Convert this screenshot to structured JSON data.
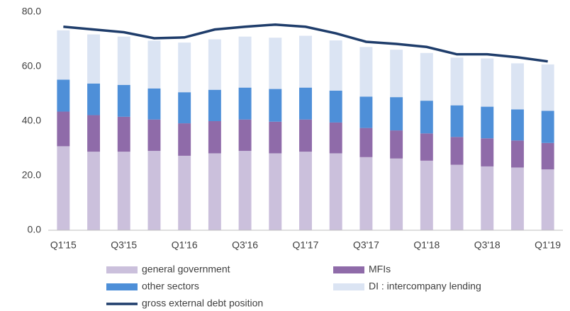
{
  "chart_data": {
    "type": "bar",
    "stacked": true,
    "grid": false,
    "categories": [
      "Q1'15",
      null,
      "Q3'15",
      null,
      "Q1'16",
      null,
      "Q3'16",
      null,
      "Q1'17",
      null,
      "Q3'17",
      null,
      "Q1'18",
      null,
      "Q3'18",
      null,
      "Q1'19"
    ],
    "ylim": [
      0,
      80
    ],
    "yticks": [
      {
        "value": 0,
        "label": "0.0"
      },
      {
        "value": 20,
        "label": "20.0"
      },
      {
        "value": 40,
        "label": "40.0"
      },
      {
        "value": 60,
        "label": "60.0"
      },
      {
        "value": 80,
        "label": "80.0"
      }
    ],
    "series": [
      {
        "name": "general government",
        "color": "#cbc0dc",
        "values": [
          30.8,
          28.8,
          28.8,
          29.1,
          27.3,
          28.2,
          29.1,
          28.2,
          28.8,
          28.2,
          26.8,
          26.3,
          25.5,
          24.0,
          23.4,
          23.0,
          22.3
        ]
      },
      {
        "name": "MFIs",
        "color": "#8f6ba9",
        "values": [
          12.7,
          13.4,
          12.8,
          11.5,
          11.9,
          11.8,
          11.5,
          11.6,
          11.8,
          11.3,
          10.7,
          10.3,
          10.0,
          10.2,
          10.3,
          9.9,
          9.7
        ]
      },
      {
        "name": "other sectors",
        "color": "#4e8fd8",
        "values": [
          11.7,
          11.6,
          11.7,
          11.4,
          11.4,
          11.5,
          11.7,
          12.0,
          11.7,
          11.7,
          11.5,
          12.2,
          12.0,
          11.6,
          11.6,
          11.4,
          11.8
        ]
      },
      {
        "name": "DI : intercompany lending",
        "color": "#dbe4f3",
        "values": [
          18.1,
          18.0,
          17.7,
          17.5,
          18.2,
          18.5,
          18.7,
          18.8,
          19.0,
          18.4,
          18.2,
          17.4,
          17.5,
          17.5,
          17.7,
          16.9,
          17.0
        ]
      },
      {
        "name": "gross external debt position",
        "color": "#1f3d6b",
        "type": "line",
        "values": [
          74.6,
          73.6,
          72.6,
          70.4,
          70.7,
          73.6,
          74.6,
          75.4,
          74.6,
          72.2,
          69.1,
          68.3,
          67.2,
          64.5,
          64.5,
          63.4,
          61.9
        ]
      }
    ]
  }
}
